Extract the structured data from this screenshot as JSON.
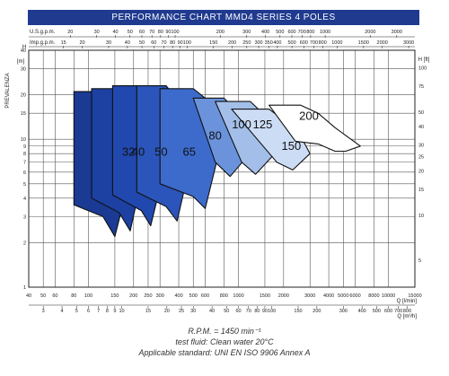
{
  "chart_data": {
    "type": "area",
    "title": "PERFORMANCE CHART MMD4 SERIES  4 POLES",
    "ylabel": "PREVALENZA",
    "y_axis_left_unit": "H [m]",
    "y_axis_right_unit": "H [ft]",
    "y_scale": "log",
    "x_scale": "log",
    "ylim_m": [
      1,
      40
    ],
    "xlim_lmin": [
      40,
      15000
    ],
    "grid": true,
    "top_axes": [
      {
        "label": "U.S.g.p.m.",
        "ticks": [
          "10",
          "20",
          "30",
          "40",
          "50",
          "60",
          "70",
          "80",
          "90",
          "100",
          "200",
          "300",
          "400",
          "500",
          "600",
          "700",
          "800",
          "1000",
          "2000",
          "3000",
          "4000"
        ]
      },
      {
        "label": "Imp.g.p.m.",
        "ticks": [
          "10",
          "15",
          "20",
          "30",
          "40",
          "50",
          "60",
          "70",
          "80",
          "90",
          "100",
          "150",
          "200",
          "250",
          "300",
          "350",
          "400",
          "500",
          "600",
          "700",
          "800",
          "1000",
          "1500",
          "2000",
          "3000"
        ]
      }
    ],
    "left_ticks": [
      "1",
      "2",
      "3",
      "4",
      "5",
      "6",
      "7",
      "8",
      "9",
      "10",
      "15",
      "20",
      "30",
      "40"
    ],
    "right_ticks": [
      "5",
      "10",
      "15",
      "20",
      "25",
      "30",
      "40",
      "50",
      "75",
      "100"
    ],
    "bottom_axes": [
      {
        "label": "Q [l/min]",
        "ticks": [
          "40",
          "50",
          "60",
          "80",
          "100",
          "150",
          "200",
          "250",
          "300",
          "400",
          "500",
          "600",
          "800",
          "1000",
          "1500",
          "2000",
          "3000",
          "4000",
          "5000",
          "6000",
          "8000",
          "10000",
          "15000"
        ]
      },
      {
        "label": "Q [m³/h]",
        "ticks": [
          "3",
          "4",
          "5",
          "6",
          "7",
          "8",
          "9",
          "10",
          "15",
          "20",
          "25",
          "30",
          "40",
          "50",
          "60",
          "70",
          "80",
          "90",
          "100",
          "150",
          "200",
          "300",
          "400",
          "500",
          "600",
          "700",
          "800",
          "900"
        ]
      }
    ],
    "series": [
      {
        "name": "32",
        "color": "#1a3a94"
      },
      {
        "name": "40",
        "color": "#1d41a2"
      },
      {
        "name": "50",
        "color": "#2148ae"
      },
      {
        "name": "65",
        "color": "#2b55ba"
      },
      {
        "name": "80",
        "color": "#3d6bcc"
      },
      {
        "name": "100",
        "color": "#6b93dc"
      },
      {
        "name": "125",
        "color": "#a3bfe9"
      },
      {
        "name": "150",
        "color": "#ccdcf5"
      },
      {
        "name": "200",
        "color": "#ffffff"
      }
    ],
    "notes": [
      "R.P.M. = 1450 min⁻¹",
      "test fluid: Clean water 20°C",
      "Applicable standard: UNI EN ISO 9906 Annex A"
    ]
  }
}
